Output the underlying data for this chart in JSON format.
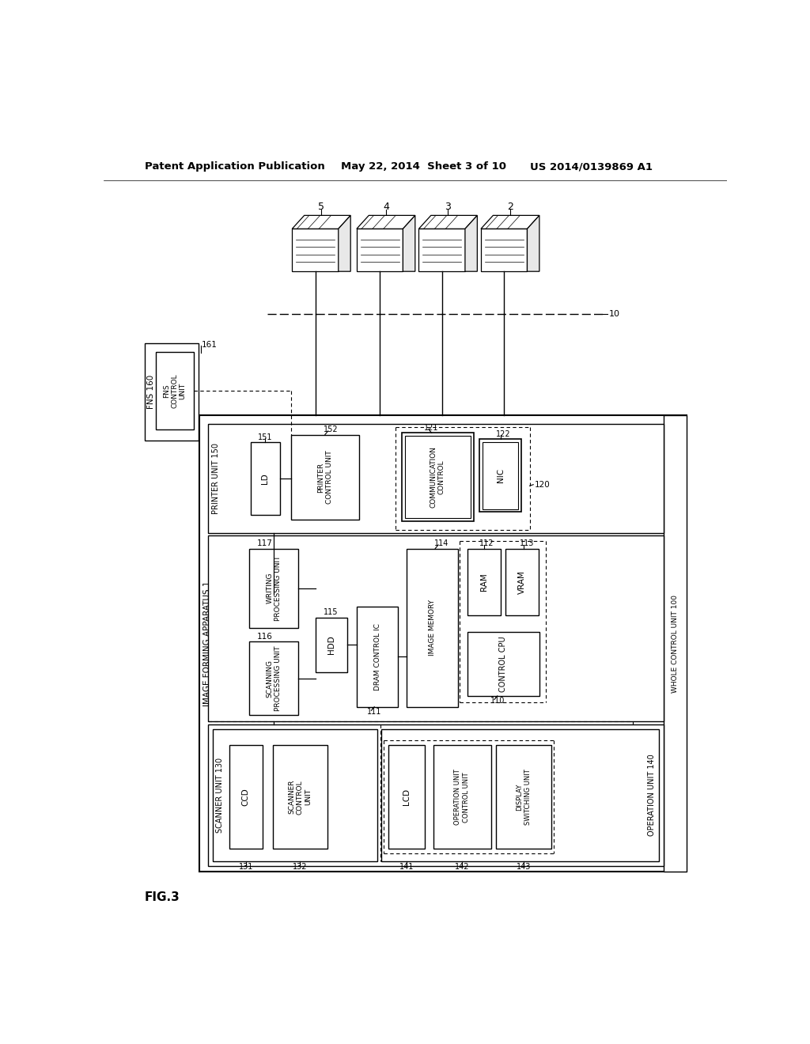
{
  "title_left": "Patent Application Publication",
  "title_mid": "May 22, 2014  Sheet 3 of 10",
  "title_right": "US 2014/0139869 A1",
  "fig_label": "FIG.3",
  "bg_color": "#ffffff",
  "line_color": "#000000",
  "text_color": "#000000"
}
